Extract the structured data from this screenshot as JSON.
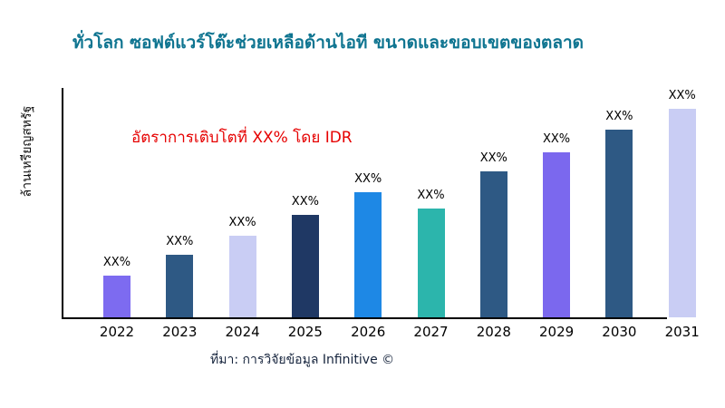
{
  "header": {
    "title": "ทั่วโลก ซอฟต์แวร์โต๊ะช่วยเหลือด้านไอที ขนาดและขอบเขตของตลาด"
  },
  "chart": {
    "ylabel": "ล้านเหรียญสหรัฐ",
    "annotation": "อัตราการเติบโตที่ XX% โดย IDR",
    "source": "ที่มา: การวิจัยข้อมูล Infinitive ©"
  },
  "chart_data": {
    "type": "bar",
    "title": "ทั่วโลก ซอฟต์แวร์โต๊ะช่วยเหลือด้านไอที ขนาดและขอบเขตของตลาด",
    "categories": [
      "2022",
      "2023",
      "2024",
      "2025",
      "2026",
      "2027",
      "2028",
      "2029",
      "2030",
      "2031"
    ],
    "values": [
      20,
      30,
      39,
      49,
      60,
      52,
      70,
      79,
      90,
      100
    ],
    "values_note": "actual values not shown in image; bars labeled with placeholder XX%, heights are relative estimates on 0-100 scale",
    "bar_labels": [
      "XX%",
      "XX%",
      "XX%",
      "XX%",
      "XX%",
      "XX%",
      "XX%",
      "XX%",
      "XX%",
      "XX%"
    ],
    "bar_colors": [
      "#7d6bf0",
      "#2e5984",
      "#c9cdf4",
      "#1f3864",
      "#1e88e5",
      "#2cb5ac",
      "#2e5984",
      "#7b68ee",
      "#2e5984",
      "#c9cdf4"
    ],
    "xlabel": "",
    "ylabel": "ล้านเหรียญสหรัฐ",
    "ylim": [
      0,
      100
    ],
    "annotation": "อัตราการเติบโตที่ XX% โดย IDR",
    "source": "ที่มา: การวิจัยข้อมูล Infinitive ©",
    "grid": false,
    "legend": false
  },
  "colors": {
    "title": "#0e7490",
    "annotation": "#e60000",
    "axis": "#000000",
    "background": "#ffffff"
  }
}
